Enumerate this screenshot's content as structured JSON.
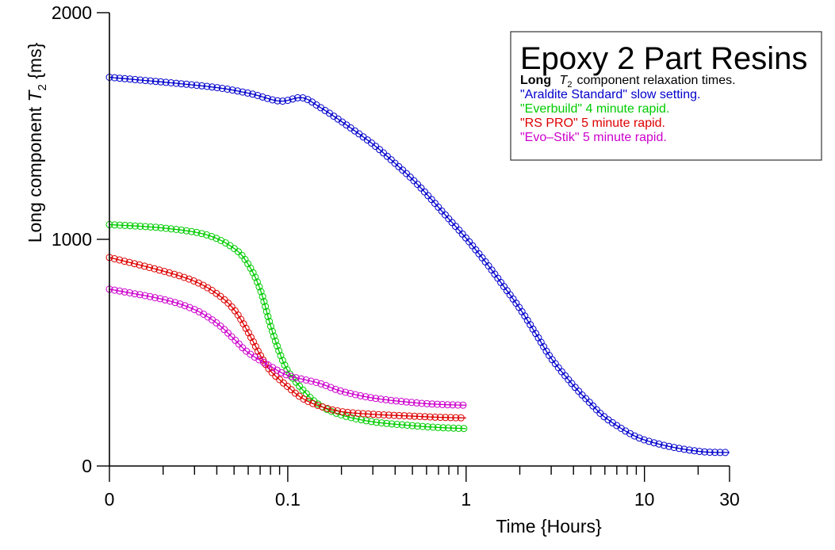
{
  "chart_data": {
    "type": "scatter",
    "x_scale": "log",
    "xlim": [
      0.01,
      30
    ],
    "ylim": [
      0,
      2000
    ],
    "x_ticks": [
      {
        "value": 0.01,
        "label": "0"
      },
      {
        "value": 0.1,
        "label": "0.1"
      },
      {
        "value": 1,
        "label": "1"
      },
      {
        "value": 10,
        "label": "10"
      },
      {
        "value": 30,
        "label": "30"
      }
    ],
    "y_ticks": [
      {
        "value": 0,
        "label": "0"
      },
      {
        "value": 1000,
        "label": "1000"
      },
      {
        "value": 2000,
        "label": "2000"
      }
    ],
    "xlabel": "Time  {Hours}",
    "ylabel": {
      "prefix": "Long  component  ",
      "symbol": "T",
      "subscript": "2",
      "suffix": "  {ms}"
    },
    "legend": {
      "position": "top-right",
      "title": "Epoxy  2  Part  Resins",
      "subtitle": {
        "bold": "Long",
        "symbol": "T",
        "subscript": "2",
        "rest": "component  relaxation  times."
      },
      "entries": [
        {
          "label": "\"Araldite  Standard\"  slow  setting.",
          "color": "#0000cc"
        },
        {
          "label": "\"Everbuild\"  4  minute  rapid.",
          "color": "#00cc00"
        },
        {
          "label": "\"RS  PRO\"  5  minute  rapid.",
          "color": "#dd0000"
        },
        {
          "label": "\"Evo–Stik\"  5  minute  rapid.",
          "color": "#cc00cc"
        }
      ]
    },
    "series": [
      {
        "name": "Araldite Standard",
        "color": "#0000cc",
        "points": [
          [
            0.01,
            1715
          ],
          [
            0.035,
            1675
          ],
          [
            0.06,
            1645
          ],
          [
            0.09,
            1610
          ],
          [
            0.12,
            1625
          ],
          [
            0.15,
            1585
          ],
          [
            0.2,
            1520
          ],
          [
            0.3,
            1420
          ],
          [
            0.4,
            1335
          ],
          [
            0.5,
            1265
          ],
          [
            0.6,
            1200
          ],
          [
            0.8,
            1090
          ],
          [
            1.0,
            1005
          ],
          [
            1.3,
            895
          ],
          [
            1.6,
            800
          ],
          [
            2.0,
            695
          ],
          [
            2.5,
            575
          ],
          [
            3.0,
            475
          ],
          [
            4.0,
            355
          ],
          [
            5.0,
            275
          ],
          [
            6.0,
            215
          ],
          [
            8.0,
            150
          ],
          [
            10.0,
            115
          ],
          [
            14.0,
            85
          ],
          [
            20.0,
            65
          ],
          [
            25.0,
            60
          ],
          [
            30.0,
            60
          ]
        ]
      },
      {
        "name": "Everbuild",
        "color": "#00cc00",
        "points": [
          [
            0.01,
            1065
          ],
          [
            0.02,
            1050
          ],
          [
            0.035,
            1020
          ],
          [
            0.05,
            960
          ],
          [
            0.06,
            890
          ],
          [
            0.07,
            780
          ],
          [
            0.08,
            620
          ],
          [
            0.09,
            500
          ],
          [
            0.1,
            420
          ],
          [
            0.12,
            340
          ],
          [
            0.15,
            270
          ],
          [
            0.2,
            225
          ],
          [
            0.3,
            195
          ],
          [
            0.5,
            178
          ],
          [
            0.7,
            170
          ],
          [
            1.0,
            165
          ]
        ]
      },
      {
        "name": "RS PRO",
        "color": "#dd0000",
        "points": [
          [
            0.01,
            920
          ],
          [
            0.02,
            860
          ],
          [
            0.03,
            815
          ],
          [
            0.04,
            760
          ],
          [
            0.05,
            690
          ],
          [
            0.06,
            590
          ],
          [
            0.07,
            490
          ],
          [
            0.08,
            420
          ],
          [
            0.1,
            350
          ],
          [
            0.12,
            300
          ],
          [
            0.15,
            265
          ],
          [
            0.2,
            240
          ],
          [
            0.3,
            228
          ],
          [
            0.5,
            220
          ],
          [
            0.7,
            215
          ],
          [
            1.0,
            212
          ]
        ]
      },
      {
        "name": "Evo-Stik",
        "color": "#cc00cc",
        "points": [
          [
            0.01,
            780
          ],
          [
            0.02,
            735
          ],
          [
            0.03,
            690
          ],
          [
            0.04,
            630
          ],
          [
            0.05,
            560
          ],
          [
            0.06,
            500
          ],
          [
            0.08,
            440
          ],
          [
            0.1,
            400
          ],
          [
            0.15,
            365
          ],
          [
            0.2,
            330
          ],
          [
            0.3,
            300
          ],
          [
            0.5,
            280
          ],
          [
            0.7,
            272
          ],
          [
            1.0,
            268
          ]
        ]
      }
    ]
  }
}
